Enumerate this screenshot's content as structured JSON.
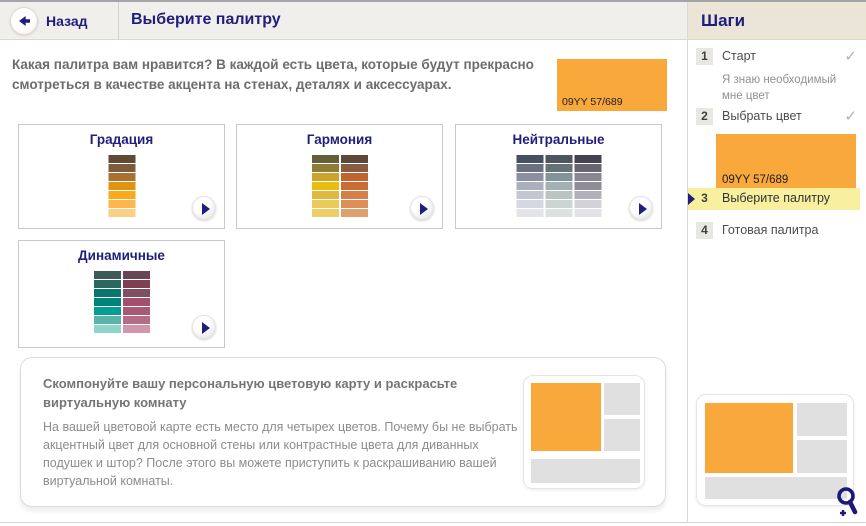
{
  "header": {
    "back_label": "Назад",
    "title": "Выберите палитру"
  },
  "intro": {
    "text": "Какая палитра вам нравится? В каждой есть цвета, которые будут прекрасно смотреться в качестве акцента на стенах, деталях и аксессуарах.",
    "selected_color": {
      "code": "09YY 57/689",
      "hex": "#F9A83C"
    }
  },
  "palettes": [
    {
      "label": "Градация",
      "columns": [
        [
          "#5E4B36",
          "#7D5B3C",
          "#AA7231",
          "#DF9511",
          "#FBA81C",
          "#FDB64E",
          "#F9D186"
        ]
      ]
    },
    {
      "label": "Гармония",
      "columns": [
        [
          "#655E37",
          "#8D7B36",
          "#CDA428",
          "#E7BD11",
          "#DFB840",
          "#ECC95C",
          "#EFCD69"
        ],
        [
          "#5D493C",
          "#8A5C41",
          "#C2642F",
          "#CA6C34",
          "#D58049",
          "#DB9059",
          "#DFA070"
        ]
      ]
    },
    {
      "label": "Нейтральные",
      "columns": [
        [
          "#475060",
          "#6A7080",
          "#8B8FA0",
          "#ABB0BF",
          "#C4C7D2",
          "#D6D8E1",
          "#E3E4EA"
        ],
        [
          "#4D565C",
          "#657278",
          "#849399",
          "#A3B1B2",
          "#BAC5C3",
          "#CCD5D1",
          "#DDE2DF"
        ],
        [
          "#464250",
          "#696471",
          "#8A8794",
          "#8F8B99",
          "#B2B0BB",
          "#D3D2D9",
          "#E3E2E8"
        ]
      ]
    },
    {
      "label": "Динамичные",
      "columns": [
        [
          "#3D5A59",
          "#2C6661",
          "#0B7470",
          "#008379",
          "#029D97",
          "#5CB3A9",
          "#8FD5CC"
        ],
        [
          "#6A4455",
          "#7D3F51",
          "#7F4F61",
          "#A54F6E",
          "#A85975",
          "#B56D85",
          "#D295AB"
        ]
      ]
    }
  ],
  "compose_box": {
    "heading": "Скомпонуйте вашу персональную цветовую карту и раскрасьте виртуальную комнату",
    "body": "На вашей цветовой карте есть место для четырех цветов. Почему бы не выбрать акцентный цвет для основной стены или контрастные цвета для диванных подушек и штор? После этого вы можете приступить к раскрашиванию вашей виртуальной комнаты."
  },
  "sidebar": {
    "title": "Шаги",
    "steps": [
      {
        "num": "1",
        "label": "Старт",
        "checked": true,
        "note": "Я знаю необходимый мне цвет"
      },
      {
        "num": "2",
        "label": "Выбрать цвет",
        "checked": true,
        "swatch_code": "09YY 57/689"
      },
      {
        "num": "3",
        "label": "Выберите палитру",
        "active": true
      },
      {
        "num": "4",
        "label": "Готовая палитра"
      }
    ]
  },
  "icons": {
    "check_glyph": "✓"
  },
  "colors": {
    "accent_orange": "#F9A83C",
    "navy": "#201E7C",
    "active_step_highlight": "#F8F09F",
    "sidebar_header_beige": "#EAE5D7",
    "header_gray": "#F0EFEC"
  }
}
